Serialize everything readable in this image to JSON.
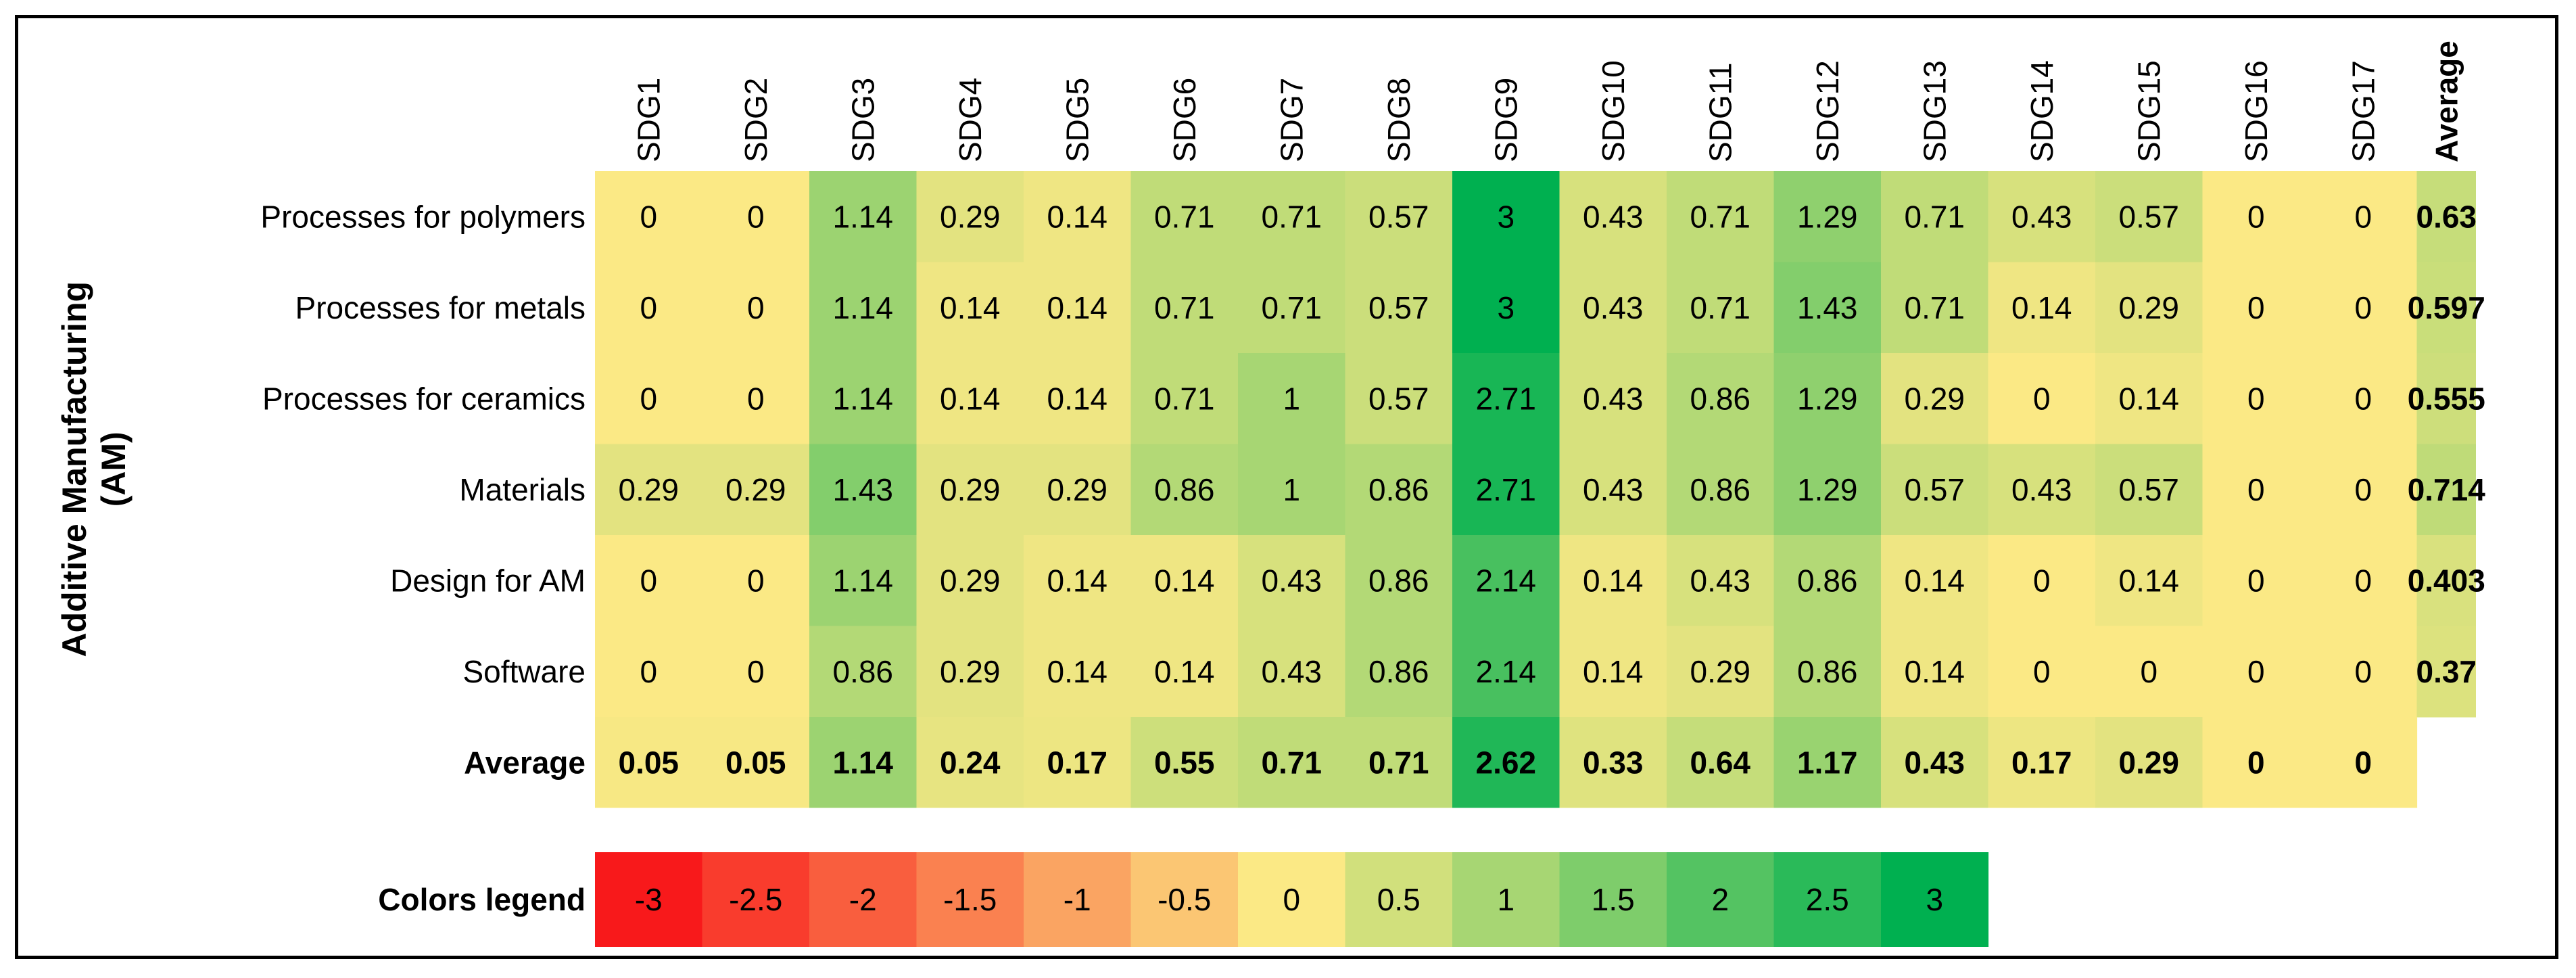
{
  "chart_data": {
    "type": "heatmap",
    "title": "",
    "row_group_label": "Additive Manufacturing (AM)",
    "row_group_label_lines": [
      "Additive Manufacturing",
      "(AM)"
    ],
    "columns": [
      "SDG1",
      "SDG2",
      "SDG3",
      "SDG4",
      "SDG5",
      "SDG6",
      "SDG7",
      "SDG8",
      "SDG9",
      "SDG10",
      "SDG11",
      "SDG12",
      "SDG13",
      "SDG14",
      "SDG15",
      "SDG16",
      "SDG17"
    ],
    "average_column_label": "Average",
    "rows": [
      {
        "label": "Processes for polymers",
        "values": [
          "0",
          "0",
          "1.14",
          "0.29",
          "0.14",
          "0.71",
          "0.71",
          "0.57",
          "3",
          "0.43",
          "0.71",
          "1.29",
          "0.71",
          "0.43",
          "0.57",
          "0",
          "0"
        ],
        "average": "0.63"
      },
      {
        "label": "Processes for metals",
        "values": [
          "0",
          "0",
          "1.14",
          "0.14",
          "0.14",
          "0.71",
          "0.71",
          "0.57",
          "3",
          "0.43",
          "0.71",
          "1.43",
          "0.71",
          "0.14",
          "0.29",
          "0",
          "0"
        ],
        "average": "0.597"
      },
      {
        "label": "Processes for ceramics",
        "values": [
          "0",
          "0",
          "1.14",
          "0.14",
          "0.14",
          "0.71",
          "1",
          "0.57",
          "2.71",
          "0.43",
          "0.86",
          "1.29",
          "0.29",
          "0",
          "0.14",
          "0",
          "0"
        ],
        "average": "0.555"
      },
      {
        "label": "Materials",
        "values": [
          "0.29",
          "0.29",
          "1.43",
          "0.29",
          "0.29",
          "0.86",
          "1",
          "0.86",
          "2.71",
          "0.43",
          "0.86",
          "1.29",
          "0.57",
          "0.43",
          "0.57",
          "0",
          "0"
        ],
        "average": "0.714"
      },
      {
        "label": "Design for AM",
        "values": [
          "0",
          "0",
          "1.14",
          "0.29",
          "0.14",
          "0.14",
          "0.43",
          "0.86",
          "2.14",
          "0.14",
          "0.43",
          "0.86",
          "0.14",
          "0",
          "0.14",
          "0",
          "0"
        ],
        "average": "0.403"
      },
      {
        "label": "Software",
        "values": [
          "0",
          "0",
          "0.86",
          "0.29",
          "0.14",
          "0.14",
          "0.43",
          "0.86",
          "2.14",
          "0.14",
          "0.29",
          "0.86",
          "0.14",
          "0",
          "0",
          "0",
          "0"
        ],
        "average": "0.37"
      }
    ],
    "average_row": {
      "label": "Average",
      "values": [
        "0.05",
        "0.05",
        "1.14",
        "0.24",
        "0.17",
        "0.55",
        "0.71",
        "0.71",
        "2.62",
        "0.33",
        "0.64",
        "1.17",
        "0.43",
        "0.17",
        "0.29",
        "0",
        "0"
      ]
    },
    "legend": {
      "label": "Colors legend",
      "values": [
        "-3",
        "-2.5",
        "-2",
        "-1.5",
        "-1",
        "-0.5",
        "0",
        "0.5",
        "1",
        "1.5",
        "2",
        "2.5",
        "3"
      ]
    },
    "color_scale": {
      "min": -3,
      "mid": 0,
      "max": 3,
      "min_color": "#f8191b",
      "mid_color": "#fbe985",
      "max_color": "#00b050"
    }
  }
}
